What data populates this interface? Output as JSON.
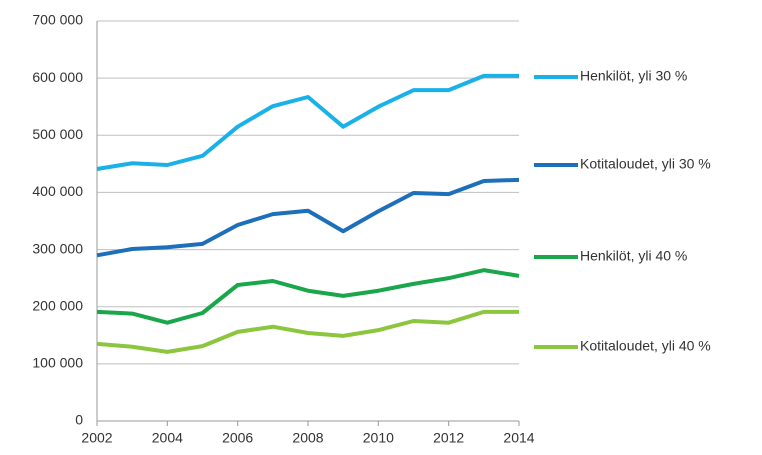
{
  "chart_data": {
    "type": "line",
    "x": [
      2002,
      2003,
      2004,
      2005,
      2006,
      2007,
      2008,
      2009,
      2010,
      2011,
      2012,
      2013,
      2014
    ],
    "xlim": [
      2002,
      2014
    ],
    "xticks": [
      2002,
      2004,
      2006,
      2008,
      2010,
      2012,
      2014
    ],
    "ylim": [
      0,
      700000
    ],
    "yticks": [
      0,
      {
        "value": 100000,
        "label": "100 000"
      },
      {
        "value": 200000,
        "label": "200 000"
      },
      {
        "value": 300000,
        "label": "300 000"
      },
      {
        "value": 400000,
        "label": "400 000"
      },
      {
        "value": 500000,
        "label": "500 000"
      },
      {
        "value": 600000,
        "label": "600 000"
      },
      {
        "value": 700000,
        "label": "700 000"
      }
    ],
    "grid": true,
    "legend": "right",
    "series": [
      {
        "name": "Henkilöt, yli 30 %",
        "color": "#1ab0e8",
        "values": [
          441000,
          451000,
          448000,
          464000,
          515000,
          551000,
          567000,
          515000,
          550000,
          579000,
          579000,
          604000,
          604000
        ]
      },
      {
        "name": "Kotitaloudet, yli 30 %",
        "color": "#1e6fba",
        "values": [
          290000,
          301000,
          304000,
          310000,
          343000,
          362000,
          368000,
          332000,
          367000,
          399000,
          397000,
          420000,
          422000
        ]
      },
      {
        "name": "Henkilöt, yli 40 %",
        "color": "#1aa64a",
        "values": [
          191000,
          188000,
          172000,
          189000,
          238000,
          245000,
          228000,
          219000,
          228000,
          240000,
          250000,
          264000,
          254000
        ]
      },
      {
        "name": "Kotitaloudet, yli 40 %",
        "color": "#8cc63f",
        "values": [
          135000,
          130000,
          121000,
          131000,
          156000,
          165000,
          154000,
          149000,
          159000,
          175000,
          172000,
          191000,
          191000
        ]
      }
    ]
  }
}
